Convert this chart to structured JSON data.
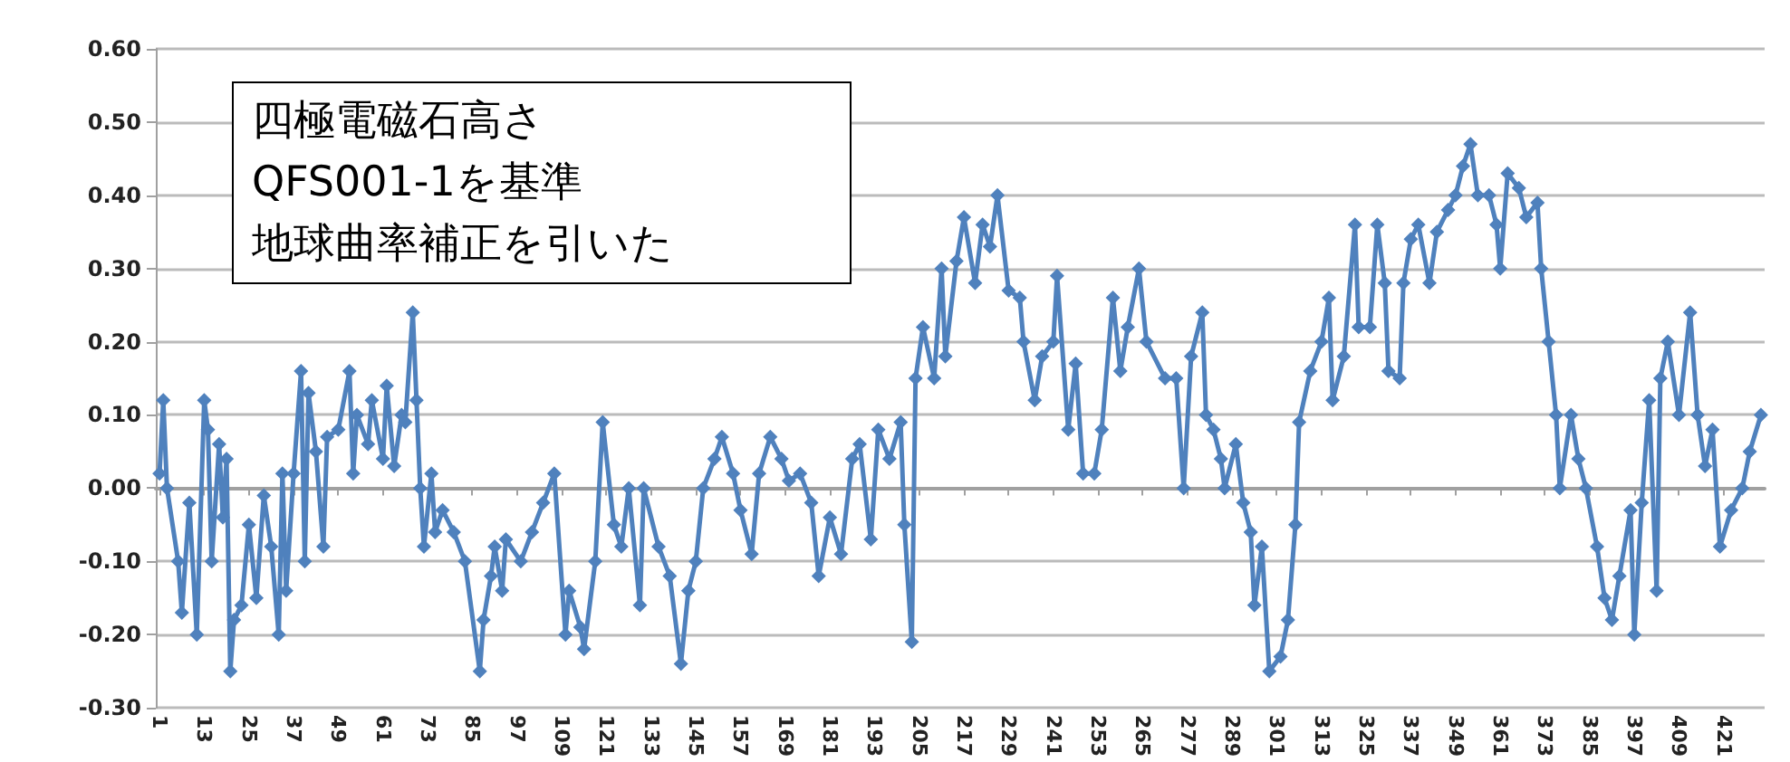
{
  "chart_data": {
    "type": "line",
    "annotations": [
      "四極電磁石高さ",
      "QFS001-1を基準",
      "地球曲率補正を引いた"
    ],
    "xlim": [
      0,
      432
    ],
    "xticks": [
      1,
      13,
      25,
      37,
      49,
      61,
      73,
      85,
      97,
      109,
      121,
      133,
      145,
      157,
      169,
      181,
      193,
      205,
      217,
      229,
      241,
      253,
      265,
      277,
      289,
      301,
      313,
      325,
      337,
      349,
      361,
      373,
      385,
      397,
      409,
      421
    ],
    "ylim": [
      -0.3,
      0.6
    ],
    "yticks": [
      {
        "value": -0.3,
        "label": "-0.30"
      },
      {
        "value": -0.2,
        "label": "-0.20"
      },
      {
        "value": -0.1,
        "label": "-0.10"
      },
      {
        "value": 0,
        "label": "0.00"
      },
      {
        "value": 0.1,
        "label": "0.10"
      },
      {
        "value": 0.2,
        "label": "0.20"
      },
      {
        "value": 0.3,
        "label": "0.30"
      },
      {
        "value": 0.4,
        "label": "0.40"
      },
      {
        "value": 0.5,
        "label": "0.50"
      },
      {
        "value": 0.6,
        "label": "0.60"
      }
    ],
    "grid": "y",
    "marker": "diamond",
    "line_style": "solid",
    "series": [
      {
        "color": "#4f81bd",
        "x": [
          1,
          2,
          3,
          6,
          7,
          9,
          11,
          13,
          14,
          15,
          17,
          18,
          19,
          20,
          21,
          23,
          25,
          27,
          29,
          31,
          33,
          34,
          35,
          37,
          39,
          40,
          41,
          43,
          45,
          46,
          49,
          52,
          53,
          54,
          57,
          58,
          61,
          62,
          64,
          66,
          67,
          69,
          70,
          71,
          72,
          74,
          75,
          77,
          80,
          83,
          87,
          88,
          90,
          91,
          93,
          94,
          98,
          101,
          104,
          107,
          110,
          111,
          114,
          115,
          118,
          120,
          123,
          125,
          127,
          130,
          131,
          135,
          138,
          141,
          143,
          145,
          147,
          150,
          152,
          155,
          157,
          160,
          162,
          165,
          168,
          170,
          173,
          176,
          178,
          181,
          184,
          187,
          189,
          192,
          194,
          197,
          200,
          201,
          203,
          204,
          206,
          209,
          211,
          212,
          215,
          217,
          220,
          222,
          224,
          226,
          229,
          232,
          233,
          236,
          238,
          241,
          242,
          245,
          247,
          249,
          252,
          254,
          257,
          259,
          261,
          264,
          266,
          271,
          274,
          276,
          278,
          281,
          282,
          284,
          286,
          287,
          290,
          292,
          294,
          295,
          297,
          299,
          302,
          304,
          306,
          307,
          310,
          313,
          315,
          316,
          319,
          322,
          323,
          326,
          328,
          330,
          331,
          334,
          335,
          337,
          339,
          342,
          344,
          347,
          349,
          351,
          353,
          355,
          358,
          360,
          361,
          363,
          366,
          368,
          371,
          372,
          374,
          376,
          377,
          380,
          382,
          384,
          387,
          389,
          391,
          393,
          396,
          397,
          399,
          401,
          403,
          404,
          406,
          409,
          412,
          414,
          416,
          418,
          420,
          423,
          426,
          428,
          431
        ],
        "values": [
          0.02,
          0.12,
          0.0,
          -0.1,
          -0.17,
          -0.02,
          -0.2,
          0.12,
          0.08,
          -0.1,
          0.06,
          -0.04,
          0.04,
          -0.25,
          -0.18,
          -0.16,
          -0.05,
          -0.15,
          -0.01,
          -0.08,
          -0.2,
          0.02,
          -0.14,
          0.02,
          0.16,
          -0.1,
          0.13,
          0.05,
          -0.08,
          0.07,
          0.08,
          0.16,
          0.02,
          0.1,
          0.06,
          0.12,
          0.04,
          0.14,
          0.03,
          0.1,
          0.09,
          0.24,
          0.12,
          0.0,
          -0.08,
          0.02,
          -0.06,
          -0.03,
          -0.06,
          -0.1,
          -0.25,
          -0.18,
          -0.12,
          -0.08,
          -0.14,
          -0.07,
          -0.1,
          -0.06,
          -0.02,
          0.02,
          -0.2,
          -0.14,
          -0.19,
          -0.22,
          -0.1,
          0.09,
          -0.05,
          -0.08,
          0.0,
          -0.16,
          0.0,
          -0.08,
          -0.12,
          -0.24,
          -0.14,
          -0.1,
          0.0,
          0.04,
          0.07,
          0.02,
          -0.03,
          -0.09,
          0.02,
          0.07,
          0.04,
          0.01,
          0.02,
          -0.02,
          -0.12,
          -0.04,
          -0.09,
          0.04,
          0.06,
          -0.07,
          0.08,
          0.04,
          0.09,
          -0.05,
          -0.21,
          0.15,
          0.22,
          0.15,
          0.3,
          0.18,
          0.31,
          0.37,
          0.28,
          0.36,
          0.33,
          0.4,
          0.27,
          0.26,
          0.2,
          0.12,
          0.18,
          0.2,
          0.29,
          0.08,
          0.17,
          0.02,
          0.02,
          0.08,
          0.26,
          0.16,
          0.22,
          0.3,
          0.2,
          0.15,
          0.15,
          0.0,
          0.18,
          0.24,
          0.1,
          0.08,
          0.04,
          0.0,
          0.06,
          -0.02,
          -0.06,
          -0.16,
          -0.08,
          -0.25,
          -0.23,
          -0.18,
          -0.05,
          0.09,
          0.16,
          0.2,
          0.26,
          0.12,
          0.18,
          0.36,
          0.22,
          0.22,
          0.36,
          0.28,
          0.16,
          0.15,
          0.28,
          0.34,
          0.36,
          0.28,
          0.35,
          0.38,
          0.4,
          0.44,
          0.47,
          0.4,
          0.4,
          0.36,
          0.3,
          0.43,
          0.41,
          0.37,
          0.39,
          0.3,
          0.2,
          0.1,
          0.0,
          0.1,
          0.04,
          0.0,
          -0.08,
          -0.15,
          -0.18,
          -0.12,
          -0.03,
          -0.2,
          -0.02,
          0.12,
          -0.14,
          0.15,
          0.2,
          0.1,
          0.24,
          0.1,
          0.03,
          0.08,
          -0.08,
          -0.03,
          0.0,
          0.05,
          0.1
        ]
      }
    ]
  }
}
